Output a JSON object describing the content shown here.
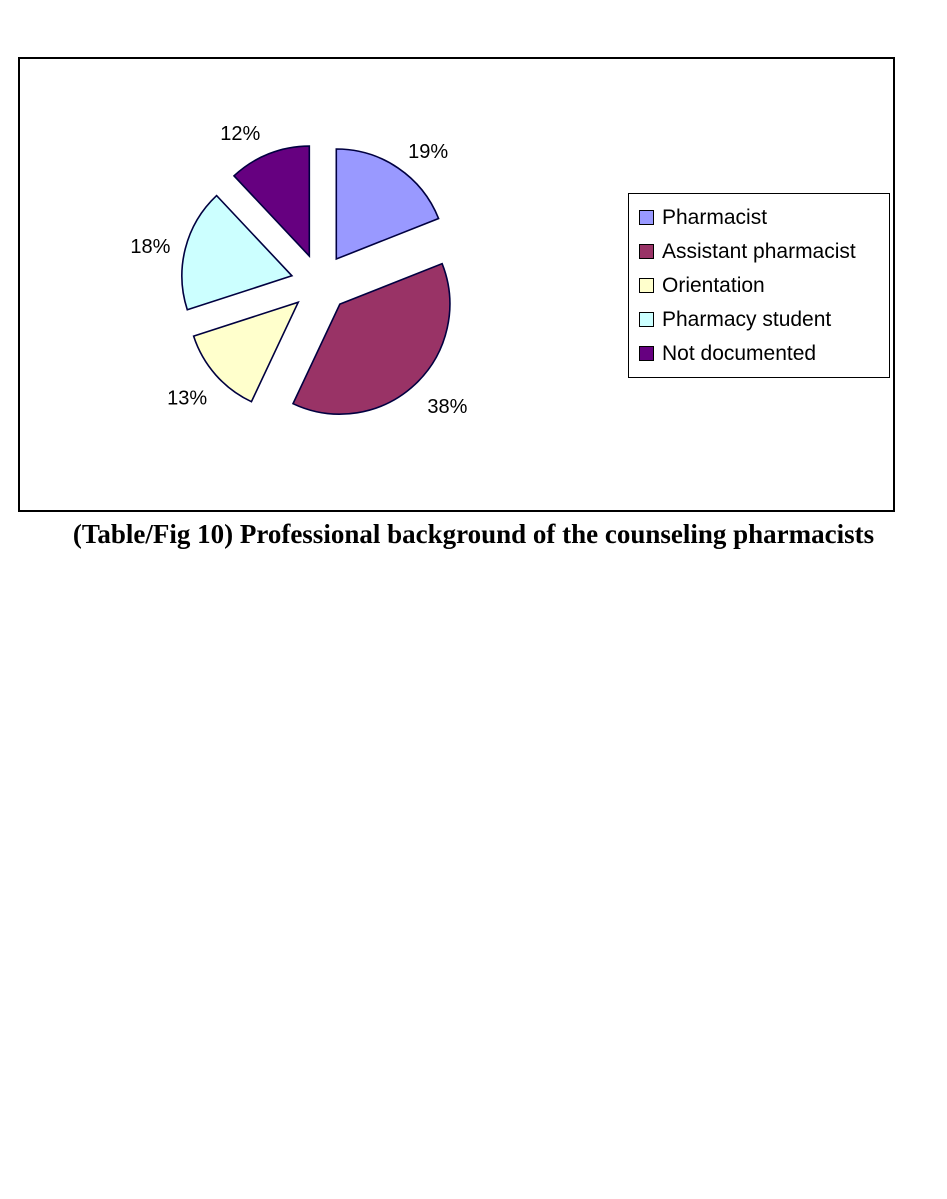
{
  "caption": "(Table/Fig 10) Professional background of the counseling pharmacists",
  "chart_data": {
    "type": "pie",
    "title": "",
    "labels": [
      "Pharmacist",
      "Assistant pharmacist",
      "Orientation",
      "Pharmacy student",
      "Not documented"
    ],
    "values": [
      19,
      38,
      13,
      18,
      12
    ],
    "unit": "percent",
    "data_labels": [
      "19%",
      "38%",
      "13%",
      "18%",
      "12%"
    ],
    "colors": [
      "#9999FF",
      "#993366",
      "#FFFFCC",
      "#CCFFFF",
      "#660080"
    ],
    "slice_border_color": "#000040",
    "start_angle_deg": 0,
    "direction": "clockwise",
    "exploded": true,
    "legend_position": "right",
    "legend_border_color": "#000000",
    "legend_entries": [
      "Pharmacist",
      "Assistant pharmacist",
      "Orientation",
      "Pharmacy student",
      "Not documented"
    ],
    "label_nudges": [
      [
        11,
        12
      ],
      [
        9,
        -2
      ],
      [
        -3,
        1
      ],
      [
        -2,
        7
      ],
      [
        -16,
        12
      ]
    ]
  }
}
